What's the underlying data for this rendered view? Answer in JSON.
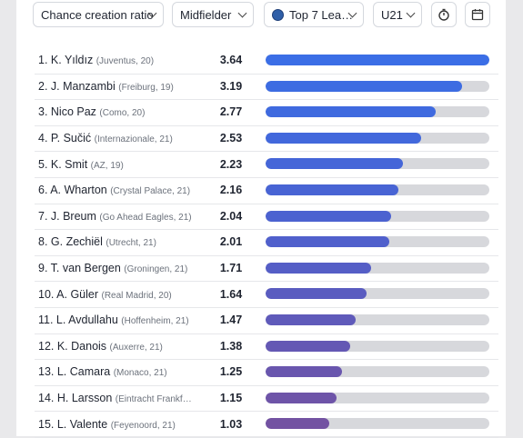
{
  "filters": {
    "metric": "Chance creation ratio",
    "position": "Midfielder",
    "competition": "Top 7 Lea…",
    "age": "U21"
  },
  "icons": {
    "clock": "timer-icon",
    "calendar": "calendar-icon"
  },
  "chart_data": {
    "type": "bar",
    "orientation": "horizontal",
    "xlim": [
      0,
      3.64
    ],
    "rows": [
      {
        "rank_name": "1. K. Yıldız",
        "club": "(Juventus, 20)",
        "value": 3.64,
        "label": "3.64",
        "color": "#3b6ee6"
      },
      {
        "rank_name": "2. J. Manzambi",
        "club": "(Freiburg, 19)",
        "value": 3.19,
        "label": "3.19",
        "color": "#3d6ce2"
      },
      {
        "rank_name": "3. Nico Paz",
        "club": "(Como, 20)",
        "value": 2.77,
        "label": "2.77",
        "color": "#3f6adf"
      },
      {
        "rank_name": "4. P. Sučić",
        "club": "(Internazionale, 21)",
        "value": 2.53,
        "label": "2.53",
        "color": "#4268dc"
      },
      {
        "rank_name": "5. K. Smit",
        "club": "(AZ, 19)",
        "value": 2.23,
        "label": "2.23",
        "color": "#4566d8"
      },
      {
        "rank_name": "6. A. Wharton",
        "club": "(Crystal Palace, 21)",
        "value": 2.16,
        "label": "2.16",
        "color": "#4864d4"
      },
      {
        "rank_name": "7. J. Breum",
        "club": "(Go Ahead Eagles, 21)",
        "value": 2.04,
        "label": "2.04",
        "color": "#4c62d0"
      },
      {
        "rank_name": "8. G. Zechiël",
        "club": "(Utrecht, 21)",
        "value": 2.01,
        "label": "2.01",
        "color": "#5060cc"
      },
      {
        "rank_name": "9. T. van Bergen",
        "club": "(Groningen, 21)",
        "value": 1.71,
        "label": "1.71",
        "color": "#555ec6"
      },
      {
        "rank_name": "10. A. Güler",
        "club": "(Real Madrid, 20)",
        "value": 1.64,
        "label": "1.64",
        "color": "#5a5cc0"
      },
      {
        "rank_name": "11. L. Avdullahu",
        "club": "(Hoffenheim, 21)",
        "value": 1.47,
        "label": "1.47",
        "color": "#5f5aba"
      },
      {
        "rank_name": "12. K. Danois",
        "club": "(Auxerre, 21)",
        "value": 1.38,
        "label": "1.38",
        "color": "#6458b4"
      },
      {
        "rank_name": "13. L. Camara",
        "club": "(Monaco, 21)",
        "value": 1.25,
        "label": "1.25",
        "color": "#6956ae"
      },
      {
        "rank_name": "14. H. Larsson",
        "club": "(Eintracht Frankf…",
        "value": 1.15,
        "label": "1.15",
        "color": "#6e54a8"
      },
      {
        "rank_name": "15. L. Valente",
        "club": "(Feyenoord, 21)",
        "value": 1.03,
        "label": "1.03",
        "color": "#7352a2"
      }
    ]
  }
}
